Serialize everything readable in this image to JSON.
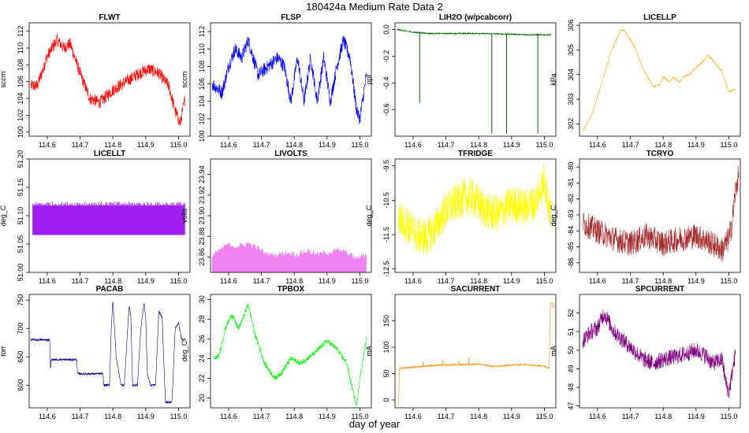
{
  "figure": {
    "title": "180424a   Medium Rate Data 2",
    "xlabel": "day of year"
  },
  "chart_data": [
    {
      "type": "line",
      "title": "FLWT",
      "ylabel": "sccm",
      "color": "#ff0000",
      "ylim": [
        99.5,
        113
      ],
      "yticks": [
        100,
        102,
        104,
        106,
        108,
        110,
        112
      ],
      "ytick_labels": [
        "100",
        "102",
        "104",
        "106",
        "108",
        "110",
        "112"
      ],
      "xlim": [
        114.545,
        115.035
      ],
      "xticks": [
        114.6,
        114.7,
        114.8,
        114.9,
        115.0
      ],
      "xtick_labels": [
        "114.6",
        "114.7",
        "114.8",
        "114.9",
        "115.0"
      ],
      "noise": 1.5,
      "x": [
        114.55,
        114.57,
        114.6,
        114.63,
        114.65,
        114.67,
        114.7,
        114.73,
        114.76,
        114.8,
        114.84,
        114.88,
        114.91,
        114.94,
        114.97,
        114.99,
        115.005,
        115.02
      ],
      "y": [
        105.5,
        105.5,
        109,
        111,
        110,
        110.5,
        107,
        104,
        103.5,
        105,
        106,
        107,
        107.5,
        107,
        105.5,
        102.5,
        101,
        104
      ]
    },
    {
      "type": "line",
      "title": "FLSP",
      "ylabel": "sccm",
      "color": "#0000ff",
      "ylim": [
        100,
        113
      ],
      "yticks": [
        100,
        102,
        104,
        106,
        108,
        110,
        112
      ],
      "ytick_labels": [
        "100",
        "102",
        "104",
        "106",
        "108",
        "110",
        "112"
      ],
      "xlim": [
        114.545,
        115.035
      ],
      "xticks": [
        114.6,
        114.7,
        114.8,
        114.9,
        115.0
      ],
      "xtick_labels": [
        "114.6",
        "114.7",
        "114.8",
        "114.9",
        "115.0"
      ],
      "noise": 1.6,
      "x": [
        114.55,
        114.58,
        114.6,
        114.62,
        114.64,
        114.66,
        114.69,
        114.72,
        114.75,
        114.77,
        114.79,
        114.81,
        114.83,
        114.85,
        114.87,
        114.89,
        114.91,
        114.93,
        114.95,
        114.97,
        114.99,
        115.0,
        115.02
      ],
      "y": [
        106,
        105,
        108,
        110,
        109,
        111,
        107,
        108,
        109,
        108,
        104,
        109,
        104,
        109,
        104,
        109,
        104,
        108,
        111,
        109,
        103,
        102,
        107
      ]
    },
    {
      "type": "line",
      "title": "LIH2O (w/pcabcorr)",
      "ylabel": "ppt",
      "color": "#006400",
      "ylim": [
        -0.8,
        0.05
      ],
      "yticks": [
        0.0,
        -0.2,
        -0.4,
        -0.6
      ],
      "ytick_labels": [
        "0.0",
        "-0.2",
        "-0.4",
        "-0.6"
      ],
      "xlim": [
        114.545,
        115.035
      ],
      "xticks": [
        114.6,
        114.7,
        114.8,
        114.9,
        115.0
      ],
      "xtick_labels": [
        "114.6",
        "114.7",
        "114.8",
        "114.9",
        "115.0"
      ],
      "noise": 0.01,
      "x": [
        114.55,
        114.6,
        114.65,
        114.7,
        114.8,
        114.9,
        114.95,
        115.0,
        115.02
      ],
      "y": [
        0.0,
        -0.02,
        -0.03,
        -0.03,
        -0.03,
        -0.035,
        -0.04,
        -0.04,
        -0.04
      ],
      "spikes": [
        {
          "x": 114.62,
          "y": -0.55
        },
        {
          "x": 114.84,
          "y": -0.78
        },
        {
          "x": 114.885,
          "y": -0.78
        },
        {
          "x": 114.98,
          "y": -0.78
        }
      ]
    },
    {
      "type": "line",
      "title": "LICELLP",
      "ylabel": "kPa",
      "color": "#ffa500",
      "ylim": [
        301.5,
        306.1
      ],
      "yticks": [
        302,
        303,
        304,
        305,
        306
      ],
      "ytick_labels": [
        "302",
        "303",
        "304",
        "305",
        "306"
      ],
      "xlim": [
        114.545,
        115.035
      ],
      "xticks": [
        114.6,
        114.7,
        114.8,
        114.9,
        115.0
      ],
      "xtick_labels": [
        "114.6",
        "114.7",
        "114.8",
        "114.9",
        "115.0"
      ],
      "noise": 0.05,
      "x": [
        114.555,
        114.58,
        114.61,
        114.64,
        114.67,
        114.68,
        114.71,
        114.74,
        114.77,
        114.79,
        114.8,
        114.82,
        114.83,
        114.85,
        114.86,
        114.88,
        114.9,
        114.92,
        114.935,
        114.95,
        114.98,
        115.0,
        115.02
      ],
      "y": [
        301.7,
        302.3,
        303.5,
        304.9,
        305.8,
        305.8,
        305.2,
        304.2,
        303.5,
        303.6,
        303.9,
        303.7,
        303.9,
        303.7,
        303.9,
        304.0,
        304.3,
        304.5,
        304.8,
        304.6,
        304.1,
        303.3,
        303.4
      ]
    },
    {
      "type": "area",
      "title": "LICELLT",
      "ylabel": "deg_C",
      "color": "#a020f0",
      "ylim": [
        51.0,
        51.2
      ],
      "yticks": [
        51.0,
        51.05,
        51.1,
        51.15,
        51.2
      ],
      "ytick_labels": [
        "51.00",
        "51.05",
        "51.10",
        "51.15",
        "51.20"
      ],
      "xlim": [
        114.545,
        115.035
      ],
      "xticks": [
        114.6,
        114.7,
        114.8,
        114.9,
        115.0
      ],
      "xtick_labels": [
        "114.6",
        "114.7",
        "114.8",
        "114.9",
        "115.0"
      ],
      "x": [
        114.555,
        115.02
      ],
      "ymin": 51.066,
      "ymax": 51.118,
      "ypeak": 51.125
    },
    {
      "type": "area",
      "title": "LIVOLTS",
      "ylabel": "volts",
      "color": "#ee82ee",
      "ylim": [
        23.845,
        23.955
      ],
      "yticks": [
        23.86,
        23.88,
        23.9,
        23.92,
        23.94
      ],
      "ytick_labels": [
        "23.86",
        "23.88",
        "23.90",
        "23.92",
        "23.94"
      ],
      "xlim": [
        114.545,
        115.035
      ],
      "xticks": [
        114.6,
        114.7,
        114.8,
        114.9,
        115.0
      ],
      "xtick_labels": [
        "114.6",
        "114.7",
        "114.8",
        "114.9",
        "115.0"
      ],
      "x": [
        114.55,
        114.58,
        114.6,
        114.63,
        114.66,
        114.69,
        114.72,
        114.75,
        114.78,
        114.81,
        114.84,
        114.87,
        114.9,
        114.93,
        114.96,
        114.99,
        115.02
      ],
      "upper": [
        23.86,
        23.868,
        23.872,
        23.87,
        23.873,
        23.868,
        23.862,
        23.862,
        23.864,
        23.862,
        23.866,
        23.862,
        23.864,
        23.866,
        23.864,
        23.858,
        23.862
      ],
      "lower": 23.845
    },
    {
      "type": "line",
      "title": "TFRIDGE",
      "ylabel": "deg_C",
      "color": "#ffff00",
      "ylim": [
        -12.6,
        -9.3
      ],
      "yticks": [
        -9.5,
        -10.5,
        -11.5,
        -12.5
      ],
      "ytick_labels": [
        "-9.5",
        "-10.5",
        "-11.5",
        "-12.5"
      ],
      "xlim": [
        114.545,
        115.035
      ],
      "xticks": [
        114.6,
        114.7,
        114.8,
        114.9,
        115.0
      ],
      "xtick_labels": [
        "114.6",
        "114.7",
        "114.8",
        "114.9",
        "115.0"
      ],
      "noise": 1.1,
      "x": [
        114.555,
        114.58,
        114.61,
        114.64,
        114.66,
        114.7,
        114.74,
        114.78,
        114.82,
        114.86,
        114.9,
        114.94,
        114.97,
        115.0,
        115.02
      ],
      "y": [
        -11,
        -11.2,
        -11.5,
        -11.6,
        -11.4,
        -10.8,
        -10.5,
        -10.4,
        -10.8,
        -10.9,
        -10.6,
        -10.7,
        -10.6,
        -9.9,
        -11.0
      ]
    },
    {
      "type": "line",
      "title": "TCRYO",
      "ylabel": "deg_C",
      "color": "#a52a2a",
      "ylim": [
        -86.6,
        -79.5
      ],
      "yticks": [
        -80,
        -81,
        -82,
        -83,
        -84,
        -85,
        -86
      ],
      "ytick_labels": [
        "-80",
        "-81",
        "-82",
        "-83",
        "-84",
        "-85",
        "-86"
      ],
      "xlim": [
        114.545,
        115.035
      ],
      "xticks": [
        114.6,
        114.7,
        114.8,
        114.9,
        115.0
      ],
      "xtick_labels": [
        "114.6",
        "114.7",
        "114.8",
        "114.9",
        "115.0"
      ],
      "noise": 1.6,
      "x": [
        114.555,
        114.6,
        114.65,
        114.7,
        114.75,
        114.8,
        114.85,
        114.9,
        114.95,
        114.98,
        115.0,
        115.01,
        115.02,
        115.03
      ],
      "y": [
        -83.5,
        -84,
        -84.5,
        -84.8,
        -84.3,
        -84.8,
        -84.5,
        -84.3,
        -84.8,
        -85.2,
        -84.5,
        -83.5,
        -81.5,
        -80.5
      ]
    },
    {
      "type": "line",
      "title": "PACAB",
      "ylabel": "torr",
      "color": "#00008b",
      "ylim": [
        560,
        760
      ],
      "yticks": [
        600,
        650,
        700,
        750
      ],
      "ytick_labels": [
        "600",
        "650",
        "700",
        "750"
      ],
      "xlim": [
        114.545,
        115.035
      ],
      "xticks": [
        114.6,
        114.7,
        114.8,
        114.9,
        115.0
      ],
      "xtick_labels": [
        "114.6",
        "114.7",
        "114.8",
        "114.9",
        "115.0"
      ],
      "noise": 4,
      "x": [
        114.55,
        114.608,
        114.61,
        114.612,
        114.69,
        114.692,
        114.694,
        114.77,
        114.772,
        114.79,
        114.795,
        114.8,
        114.81,
        114.825,
        114.835,
        114.845,
        114.85,
        114.855,
        114.86,
        114.875,
        114.885,
        114.895,
        114.9,
        114.905,
        114.91,
        114.915,
        114.93,
        114.94,
        114.95,
        114.96,
        114.98,
        114.99,
        115.0,
        115.01,
        115.02
      ],
      "y": [
        680,
        680,
        625,
        645,
        645,
        620,
        620,
        620,
        600,
        600,
        700,
        750,
        650,
        600,
        600,
        700,
        740,
        720,
        600,
        600,
        700,
        745,
        720,
        620,
        610,
        600,
        600,
        730,
        720,
        570,
        570,
        700,
        710,
        680,
        680
      ]
    },
    {
      "type": "line",
      "title": "TPBOX",
      "ylabel": "deg_C",
      "color": "#00ff00",
      "ylim": [
        19,
        30.5
      ],
      "yticks": [
        20,
        22,
        24,
        26,
        28,
        30
      ],
      "ytick_labels": [
        "20",
        "22",
        "24",
        "26",
        "28",
        "30"
      ],
      "xlim": [
        114.545,
        115.035
      ],
      "xticks": [
        114.6,
        114.7,
        114.8,
        114.9,
        115.0
      ],
      "xtick_labels": [
        "114.6",
        "114.7",
        "114.8",
        "114.9",
        "115.0"
      ],
      "noise": 0.5,
      "x": [
        114.555,
        114.57,
        114.59,
        114.61,
        114.63,
        114.645,
        114.66,
        114.68,
        114.71,
        114.74,
        114.76,
        114.79,
        114.82,
        114.86,
        114.9,
        114.93,
        114.96,
        114.98,
        114.99,
        115.0,
        115.02
      ],
      "y": [
        24,
        24.2,
        27,
        28.5,
        27,
        28.2,
        29.5,
        26.5,
        23.5,
        22,
        22.5,
        24,
        23.5,
        24.5,
        25.8,
        25,
        23.5,
        20.5,
        19.2,
        22,
        26
      ]
    },
    {
      "type": "line",
      "title": "SACURRENT",
      "ylabel": "mA",
      "color": "#ff8c00",
      "ylim": [
        -15,
        200
      ],
      "yticks": [
        0,
        50,
        100,
        150
      ],
      "ytick_labels": [
        "0",
        "50",
        "100",
        "150"
      ],
      "xlim": [
        114.545,
        115.035
      ],
      "xticks": [
        114.6,
        114.7,
        114.8,
        114.9,
        115.0
      ],
      "xtick_labels": [
        "114.6",
        "114.7",
        "114.8",
        "114.9",
        "115.0"
      ],
      "noise": 3,
      "x": [
        114.556,
        114.558,
        114.562,
        114.6,
        114.65,
        114.7,
        114.75,
        114.8,
        114.85,
        114.9,
        114.95,
        115.0,
        115.015,
        115.018,
        115.022,
        115.03
      ],
      "y": [
        -10,
        58,
        60,
        62,
        65,
        66,
        67,
        68,
        63,
        66,
        67,
        64,
        60,
        180,
        185,
        175
      ],
      "spikes": [
        {
          "x": 114.63,
          "y": 72
        },
        {
          "x": 114.69,
          "y": 75
        },
        {
          "x": 114.74,
          "y": 74
        },
        {
          "x": 114.77,
          "y": 80
        }
      ]
    },
    {
      "type": "line",
      "title": "SPCURRENT",
      "ylabel": "mA",
      "color": "#800080",
      "ylim": [
        46.9,
        53
      ],
      "yticks": [
        47,
        48,
        49,
        50,
        51,
        52
      ],
      "ytick_labels": [
        "47",
        "48",
        "49",
        "50",
        "51",
        "52"
      ],
      "xlim": [
        114.545,
        115.035
      ],
      "xticks": [
        114.6,
        114.7,
        114.8,
        114.9,
        115.0
      ],
      "xtick_labels": [
        "114.6",
        "114.7",
        "114.8",
        "114.9",
        "115.0"
      ],
      "noise": 0.9,
      "x": [
        114.555,
        114.58,
        114.6,
        114.62,
        114.65,
        114.68,
        114.71,
        114.74,
        114.77,
        114.8,
        114.85,
        114.9,
        114.93,
        114.95,
        114.98,
        114.99,
        115.0,
        115.02
      ],
      "y": [
        50.5,
        51,
        51.2,
        52,
        51,
        50.5,
        50,
        49.5,
        49.3,
        49.5,
        49.7,
        50,
        49.7,
        49.3,
        49.5,
        48.3,
        47.7,
        49.8
      ]
    }
  ]
}
